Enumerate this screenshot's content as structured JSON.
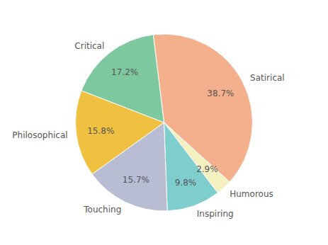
{
  "chart_data": {
    "type": "pie",
    "categories": [
      "Satirical",
      "Humorous",
      "Inspiring",
      "Touching",
      "Philosophical",
      "Critical"
    ],
    "values": [
      38.7,
      2.9,
      9.8,
      15.7,
      15.8,
      17.2
    ],
    "value_labels": [
      "38.7%",
      "2.9%",
      "9.8%",
      "15.7%",
      "15.8%",
      "17.2%"
    ],
    "colors": [
      "#f4b08c",
      "#f5f0c0",
      "#7ecece",
      "#b8bdd4",
      "#f0c040",
      "#7ec8a0"
    ],
    "data_labels": true
  }
}
